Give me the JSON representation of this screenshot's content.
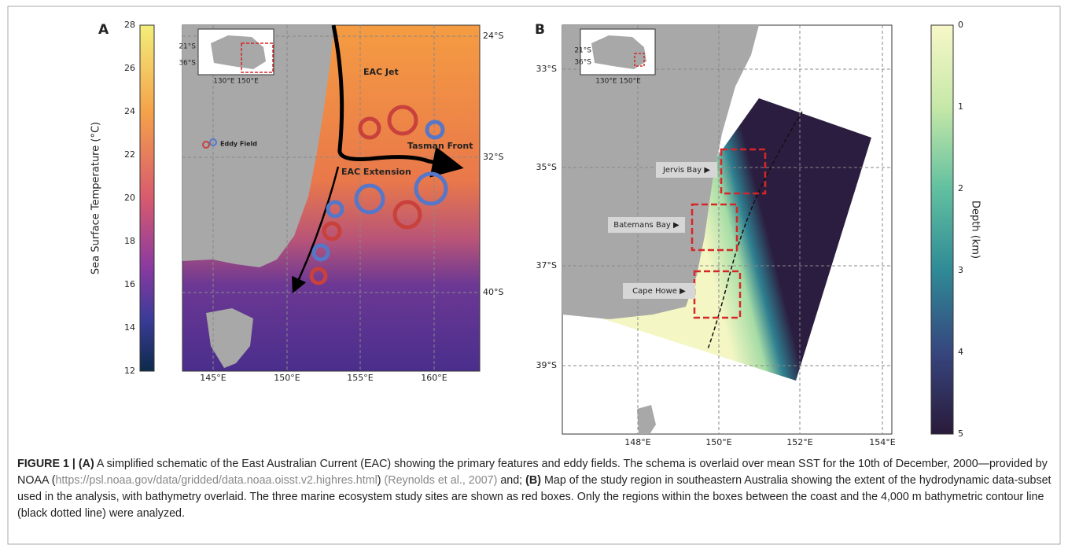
{
  "panel_a": {
    "label": "A",
    "colorbar": {
      "label": "Sea Surface Temperature (°C)",
      "ticks": [
        "28",
        "26",
        "24",
        "22",
        "20",
        "18",
        "16",
        "14",
        "12"
      ]
    },
    "lat_labels": [
      "24°S",
      "32°S",
      "40°S"
    ],
    "lon_labels": [
      "145°E",
      "150°E",
      "155°E",
      "160°E"
    ],
    "inset": {
      "lat_labels": [
        "21°S",
        "36°S"
      ],
      "lon_labels": "130°E 150°E"
    },
    "annotations": {
      "jet": "EAC Jet",
      "front": "Tasman Front",
      "extension": "EAC Extension",
      "eddy": "Eddy Field"
    }
  },
  "panel_b": {
    "label": "B",
    "colorbar": {
      "label": "Depth (km)",
      "ticks": [
        "0",
        "1",
        "2",
        "3",
        "4",
        "5"
      ]
    },
    "lat_labels": [
      "33°S",
      "35°S",
      "37°S",
      "39°S"
    ],
    "lon_labels": [
      "148°E",
      "150°E",
      "152°E",
      "154°E"
    ],
    "inset": {
      "lat_labels": [
        "21°S",
        "36°S"
      ],
      "lon_labels": "130°E 150°E"
    },
    "sites": [
      "Jervis Bay ▶",
      "Batemans Bay ▶",
      "Cape Howe ▶"
    ]
  },
  "caption": [
    {
      "text": "FIGURE 1 | (A)",
      "style": "bold"
    },
    {
      "text": " A simplified schematic of the East Australian Current (EAC) showing the primary features and eddy fields. The schema is overlaid over mean SST for the 10th of December, 2000—provided by NOAA (",
      "style": "plain"
    },
    {
      "text": "https://psl.noaa.gov/data/gridded/data.noaa.oisst.v2.highres.html",
      "style": "link"
    },
    {
      "text": ") ",
      "style": "plain"
    },
    {
      "text": "(Reynolds et al., 2007)",
      "style": "link"
    },
    {
      "text": " and; ",
      "style": "plain"
    },
    {
      "text": "(B)",
      "style": "bold"
    },
    {
      "text": " Map of the study region in southeastern Australia showing the extent of the hydrodynamic data-subset used in the analysis, with bathymetry overlaid. The three marine ecosystem study sites are shown as red boxes. Only the regions within the boxes between the coast and the 4,000 m bathymetric contour line (black dotted line) were analyzed.",
      "style": "plain"
    }
  ]
}
